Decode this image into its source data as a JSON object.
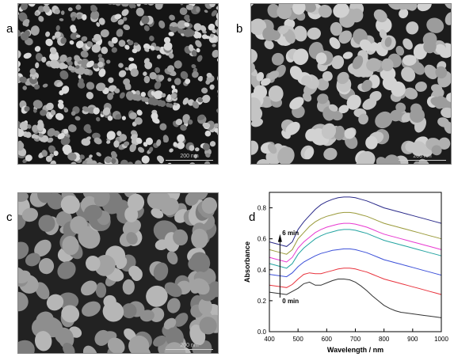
{
  "figure": {
    "panels": [
      {
        "label": "a",
        "scale_text": "200 nm"
      },
      {
        "label": "b",
        "scale_text": "200 nm"
      },
      {
        "label": "c",
        "scale_text": "200 nm"
      },
      {
        "label": "d"
      }
    ]
  },
  "chart_data": {
    "type": "line",
    "xlabel": "Wavelength / nm",
    "ylabel": "Absorbance",
    "xlim": [
      400,
      1000
    ],
    "ylim": [
      0.0,
      0.9
    ],
    "xticks": [
      400,
      500,
      600,
      700,
      800,
      900,
      1000
    ],
    "yticks": [
      0.0,
      0.2,
      0.4,
      0.6,
      0.8
    ],
    "grid": false,
    "annotations": [
      {
        "text": "6 min",
        "x": 445,
        "y": 0.64
      },
      {
        "text": "0 min",
        "x": 445,
        "y": 0.2
      }
    ],
    "x": [
      400,
      420,
      440,
      460,
      480,
      500,
      520,
      540,
      560,
      580,
      600,
      620,
      640,
      660,
      680,
      700,
      720,
      740,
      760,
      780,
      800,
      820,
      840,
      860,
      880,
      900,
      920,
      940,
      960,
      980,
      1000
    ],
    "series": [
      {
        "color": "#333333",
        "values": [
          0.255,
          0.25,
          0.245,
          0.24,
          0.26,
          0.28,
          0.31,
          0.32,
          0.3,
          0.3,
          0.315,
          0.33,
          0.34,
          0.34,
          0.335,
          0.32,
          0.295,
          0.265,
          0.23,
          0.2,
          0.17,
          0.15,
          0.135,
          0.125,
          0.12,
          0.115,
          0.11,
          0.105,
          0.1,
          0.095,
          0.09
        ]
      },
      {
        "color": "#e8323c",
        "values": [
          0.3,
          0.295,
          0.29,
          0.285,
          0.305,
          0.34,
          0.37,
          0.38,
          0.375,
          0.375,
          0.385,
          0.395,
          0.405,
          0.41,
          0.41,
          0.405,
          0.395,
          0.385,
          0.37,
          0.355,
          0.34,
          0.33,
          0.32,
          0.31,
          0.3,
          0.29,
          0.28,
          0.27,
          0.26,
          0.25,
          0.24
        ]
      },
      {
        "color": "#3b4fd8",
        "values": [
          0.37,
          0.365,
          0.36,
          0.355,
          0.38,
          0.42,
          0.45,
          0.47,
          0.49,
          0.505,
          0.515,
          0.525,
          0.53,
          0.535,
          0.535,
          0.53,
          0.52,
          0.51,
          0.495,
          0.48,
          0.465,
          0.455,
          0.445,
          0.435,
          0.425,
          0.415,
          0.405,
          0.395,
          0.385,
          0.375,
          0.365
        ]
      },
      {
        "color": "#22a3a0",
        "values": [
          0.44,
          0.43,
          0.42,
          0.41,
          0.44,
          0.5,
          0.54,
          0.57,
          0.6,
          0.62,
          0.635,
          0.645,
          0.655,
          0.66,
          0.66,
          0.655,
          0.645,
          0.635,
          0.62,
          0.605,
          0.59,
          0.58,
          0.57,
          0.56,
          0.55,
          0.54,
          0.53,
          0.52,
          0.51,
          0.5,
          0.49
        ]
      },
      {
        "color": "#e838d0",
        "values": [
          0.48,
          0.47,
          0.46,
          0.45,
          0.48,
          0.54,
          0.58,
          0.61,
          0.64,
          0.66,
          0.675,
          0.685,
          0.695,
          0.7,
          0.7,
          0.695,
          0.685,
          0.675,
          0.66,
          0.645,
          0.63,
          0.62,
          0.61,
          0.6,
          0.59,
          0.58,
          0.57,
          0.56,
          0.55,
          0.54,
          0.53
        ]
      },
      {
        "color": "#9a9a3a",
        "values": [
          0.53,
          0.52,
          0.51,
          0.5,
          0.53,
          0.6,
          0.64,
          0.68,
          0.71,
          0.73,
          0.745,
          0.755,
          0.765,
          0.77,
          0.77,
          0.765,
          0.755,
          0.745,
          0.73,
          0.715,
          0.7,
          0.69,
          0.68,
          0.67,
          0.66,
          0.65,
          0.64,
          0.63,
          0.62,
          0.61,
          0.6
        ]
      },
      {
        "color": "#2a2a8a",
        "values": [
          0.58,
          0.57,
          0.56,
          0.55,
          0.58,
          0.66,
          0.71,
          0.75,
          0.79,
          0.82,
          0.84,
          0.855,
          0.865,
          0.87,
          0.87,
          0.865,
          0.855,
          0.845,
          0.83,
          0.815,
          0.8,
          0.79,
          0.78,
          0.77,
          0.76,
          0.75,
          0.74,
          0.73,
          0.72,
          0.71,
          0.7
        ]
      }
    ]
  }
}
